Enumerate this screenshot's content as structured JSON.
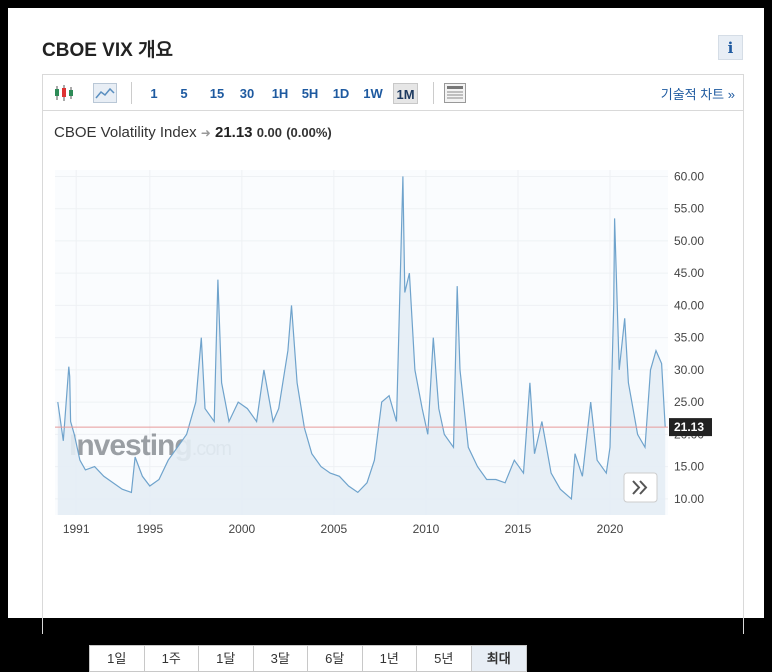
{
  "page": {
    "title": "CBOE VIX 개요"
  },
  "toolbar": {
    "intervals": [
      "1",
      "5",
      "15",
      "30",
      "1H",
      "5H",
      "1D",
      "1W",
      "1M"
    ],
    "active_interval": "1M",
    "tech_chart_label": "기술적 차트 »"
  },
  "headline": {
    "name": "CBOE Volatility Index",
    "price": "21.13",
    "change": "0.00",
    "change_pct": "(0.00%)"
  },
  "watermark": {
    "brand": "Investing",
    "suffix": ".com"
  },
  "range_buttons": [
    "1일",
    "1주",
    "1달",
    "3달",
    "6달",
    "1년",
    "5년",
    "최대"
  ],
  "active_range": "최대",
  "colors": {
    "line": "#6fa3cc",
    "fill": "#e4edf5",
    "ref_line": "#e79a9a",
    "last_tag": "#222222",
    "link": "#1e5aa0"
  },
  "chart_data": {
    "type": "area",
    "ylim": [
      7.5,
      61
    ],
    "y_ticks": [
      "10.00",
      "15.00",
      "20.00",
      "25.00",
      "30.00",
      "35.00",
      "40.00",
      "45.00",
      "50.00",
      "55.00",
      "60.00"
    ],
    "x_ticks": [
      "1991",
      "1995",
      "2000",
      "2005",
      "2010",
      "2015",
      "2020"
    ],
    "x_tick_values": [
      1991,
      1995,
      2000,
      2005,
      2010,
      2015,
      2020
    ],
    "last_value_label": "21.13",
    "last_value": 21.13,
    "x": [
      1990.0,
      1990.3,
      1990.6,
      1990.65,
      1990.7,
      1990.9,
      1991.2,
      1991.5,
      1992.0,
      1992.5,
      1993.0,
      1993.5,
      1994.0,
      1994.2,
      1994.6,
      1995.0,
      1995.5,
      1996.0,
      1996.5,
      1997.0,
      1997.5,
      1997.8,
      1998.0,
      1998.5,
      1998.7,
      1998.9,
      1999.3,
      1999.8,
      2000.3,
      2000.8,
      2001.2,
      2001.7,
      2002.0,
      2002.5,
      2002.7,
      2003.0,
      2003.4,
      2003.8,
      2004.3,
      2004.8,
      2005.3,
      2005.8,
      2006.3,
      2006.8,
      2007.2,
      2007.6,
      2008.0,
      2008.4,
      2008.75,
      2008.85,
      2009.1,
      2009.4,
      2009.8,
      2010.1,
      2010.4,
      2010.7,
      2011.0,
      2011.5,
      2011.7,
      2011.85,
      2012.3,
      2012.8,
      2013.3,
      2013.8,
      2014.3,
      2014.8,
      2015.3,
      2015.65,
      2015.9,
      2016.3,
      2016.8,
      2017.3,
      2017.9,
      2018.1,
      2018.5,
      2018.95,
      2019.3,
      2019.8,
      2020.0,
      2020.2,
      2020.25,
      2020.5,
      2020.8,
      2021.0,
      2021.5,
      2021.9,
      2022.2,
      2022.5,
      2022.8,
      2023.0
    ],
    "y": [
      25.0,
      19.0,
      30.5,
      29.0,
      22.0,
      20.0,
      16.0,
      14.5,
      15.0,
      13.5,
      12.5,
      11.5,
      11.0,
      16.5,
      13.5,
      12.0,
      13.0,
      16.0,
      18.0,
      20.0,
      25.0,
      35.0,
      24.0,
      22.0,
      44.0,
      28.0,
      22.0,
      25.0,
      24.0,
      22.0,
      30.0,
      22.0,
      24.0,
      33.0,
      40.0,
      28.0,
      21.0,
      17.0,
      15.0,
      14.0,
      13.5,
      12.0,
      11.0,
      12.5,
      16.0,
      25.0,
      26.0,
      22.0,
      60.0,
      42.0,
      45.0,
      30.0,
      24.0,
      20.0,
      35.0,
      24.0,
      20.0,
      18.0,
      43.0,
      30.0,
      18.0,
      15.0,
      13.0,
      13.0,
      12.5,
      16.0,
      14.0,
      28.0,
      17.0,
      22.0,
      14.0,
      11.5,
      10.0,
      17.0,
      13.5,
      25.0,
      16.0,
      14.0,
      18.0,
      40.0,
      53.5,
      30.0,
      38.0,
      28.0,
      20.0,
      18.0,
      30.0,
      33.0,
      31.0,
      21.13
    ]
  }
}
